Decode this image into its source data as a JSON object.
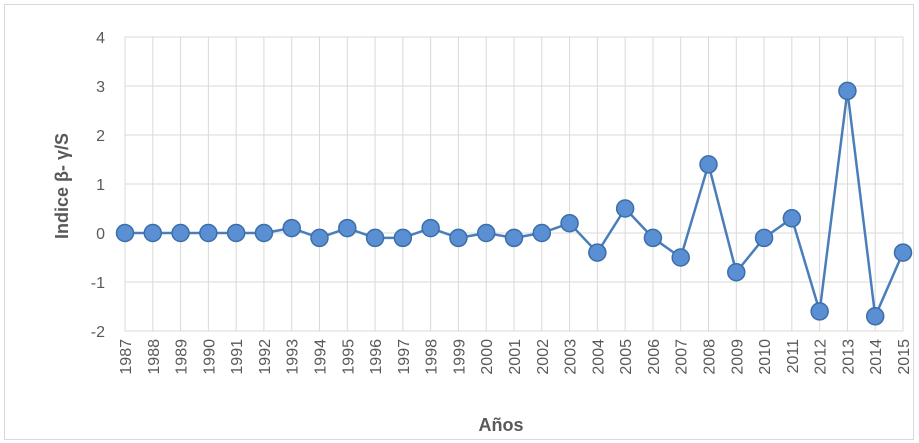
{
  "chart_data": {
    "type": "line",
    "xlabel": "Años",
    "ylabel": "Indice β- γ/S",
    "ylim": [
      -2,
      4
    ],
    "y_ticks": [
      4,
      3,
      2,
      1,
      0,
      -1,
      -2
    ],
    "grid": true,
    "legend": "none",
    "categories": [
      "1987",
      "1988",
      "1989",
      "1990",
      "1991",
      "1992",
      "1993",
      "1994",
      "1995",
      "1996",
      "1997",
      "1998",
      "1999",
      "2000",
      "2001",
      "2002",
      "2003",
      "2004",
      "2005",
      "2006",
      "2007",
      "2008",
      "2009",
      "2010",
      "2011",
      "2012",
      "2013",
      "2014",
      "2015"
    ],
    "series": [
      {
        "values": [
          0,
          0,
          0,
          0,
          0,
          0,
          0.1,
          -0.1,
          0.1,
          -0.1,
          -0.1,
          0.1,
          -0.1,
          0,
          -0.1,
          0,
          0.2,
          -0.4,
          0.5,
          -0.1,
          -0.5,
          1.4,
          -0.8,
          -0.1,
          0.3,
          -1.6,
          2.9,
          -1.7,
          -0.4
        ],
        "color": "#4a7ebb"
      }
    ],
    "colors": {
      "grid": "#d9d9d9",
      "line": "#4a7ebb",
      "marker_fill": "#5b8fd4",
      "marker_stroke": "#3c6ea8"
    }
  }
}
